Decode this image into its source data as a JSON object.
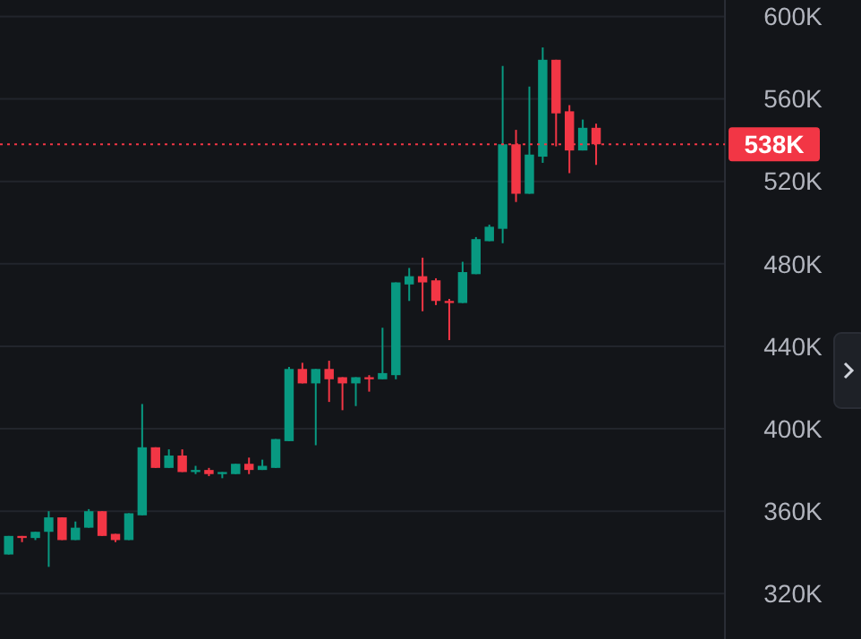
{
  "chart_data": {
    "type": "candlestick",
    "categories": [
      null,
      null,
      null,
      null,
      null,
      null,
      null,
      null,
      null,
      null,
      null,
      null,
      null,
      null,
      null,
      null,
      null,
      null,
      null,
      null,
      null,
      null,
      null,
      null,
      null,
      null,
      null,
      null,
      null,
      null,
      null,
      null,
      null,
      null,
      null,
      null,
      null,
      null,
      null,
      null,
      null,
      null,
      null,
      null,
      null,
      null,
      null,
      null,
      null,
      null,
      null,
      null,
      null,
      null
    ],
    "ohlc": [
      [
        339,
        348,
        339,
        348
      ],
      [
        348,
        348,
        345,
        347
      ],
      [
        347,
        350,
        346,
        350
      ],
      [
        350,
        360,
        333,
        357
      ],
      [
        357,
        357,
        346,
        346
      ],
      [
        346,
        355,
        346,
        352
      ],
      [
        352,
        361,
        352,
        360
      ],
      [
        360,
        360,
        348,
        348
      ],
      [
        349,
        349,
        345,
        346
      ],
      [
        346,
        359,
        346,
        359
      ],
      [
        358,
        412,
        358,
        391
      ],
      [
        391,
        391,
        381,
        381
      ],
      [
        381,
        390,
        381,
        387
      ],
      [
        387,
        390,
        379,
        379
      ],
      [
        379,
        382,
        378,
        380
      ],
      [
        380,
        381,
        377,
        378
      ],
      [
        378,
        379,
        376,
        379
      ],
      [
        378,
        383,
        378,
        383
      ],
      [
        383,
        386,
        378,
        380
      ],
      [
        380,
        385,
        380,
        382
      ],
      [
        381,
        395,
        381,
        395
      ],
      [
        394,
        430,
        394,
        429
      ],
      [
        429,
        432,
        422,
        422
      ],
      [
        422,
        429,
        392,
        429
      ],
      [
        429,
        433,
        413,
        424
      ],
      [
        425,
        425,
        409,
        422
      ],
      [
        422,
        425,
        411,
        425
      ],
      [
        425,
        426,
        418,
        424
      ],
      [
        424,
        449,
        424,
        427
      ],
      [
        426,
        471,
        424,
        471
      ],
      [
        470,
        478,
        462,
        474
      ],
      [
        474,
        483,
        457,
        471
      ],
      [
        472,
        473,
        460,
        462
      ],
      [
        462,
        463,
        443,
        461
      ],
      [
        461,
        481,
        461,
        476
      ],
      [
        475,
        493,
        475,
        492
      ],
      [
        491,
        499,
        491,
        498
      ],
      [
        497,
        576,
        490,
        538
      ],
      [
        538,
        545,
        510,
        514
      ],
      [
        514,
        566,
        514,
        533
      ],
      [
        532,
        585,
        529,
        579
      ],
      [
        579,
        579,
        537,
        553
      ],
      [
        554,
        557,
        524,
        535
      ],
      [
        535,
        550,
        535,
        546
      ],
      [
        546,
        548,
        528,
        538
      ],
      null,
      null,
      null,
      null,
      null,
      null,
      null,
      null,
      null
    ],
    "colors": [
      "#089981",
      "#f23645",
      "#089981",
      "#089981",
      "#f23645",
      "#089981",
      "#089981",
      "#f23645",
      "#f23645",
      "#089981",
      "#089981",
      "#f23645",
      "#089981",
      "#f23645",
      "#089981",
      "#f23645",
      "#089981",
      "#089981",
      "#f23645",
      "#089981",
      "#089981",
      "#089981",
      "#f23645",
      "#089981",
      "#f23645",
      "#f23645",
      "#089981",
      "#f23645",
      "#089981",
      "#089981",
      "#089981",
      "#f23645",
      "#f23645",
      "#f23645",
      "#089981",
      "#089981",
      "#089981",
      "#089981",
      "#f23645",
      "#089981",
      "#089981",
      "#f23645",
      "#f23645",
      "#089981",
      "#f23645",
      null,
      null,
      null,
      null,
      null,
      null,
      null,
      null,
      null
    ],
    "ylim": [
      298,
      608
    ],
    "yticks": [
      {
        "value": 320,
        "label": "320K"
      },
      {
        "value": 360,
        "label": "360K"
      },
      {
        "value": 400,
        "label": "400K"
      },
      {
        "value": 440,
        "label": "440K"
      },
      {
        "value": 480,
        "label": "480K"
      },
      {
        "value": 520,
        "label": "520K"
      },
      {
        "value": 560,
        "label": "560K"
      },
      {
        "value": 600,
        "label": "600K"
      }
    ],
    "grid": "y",
    "tick_labels": "y",
    "ref_lines": [
      {
        "axis": "y",
        "value": 538,
        "label": "538K",
        "color": "#f23645",
        "line_style": "dotted"
      }
    ]
  }
}
